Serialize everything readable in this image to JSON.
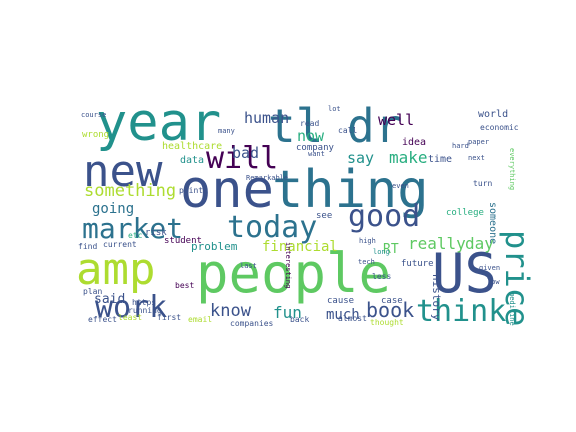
{
  "palette": {
    "dark_purple": "#440154",
    "indigo": "#3b528b",
    "blue": "#2c728e",
    "teal": "#21918c",
    "green": "#28ae80",
    "light_green": "#5ec962",
    "yellow_green": "#addc30",
    "yellow": "#fde725"
  },
  "words": [
    "year",
    "tl",
    "dr",
    "new",
    "one",
    "thing",
    "will",
    "market",
    "today",
    "good",
    "price",
    "amp",
    "people",
    "US",
    "work",
    "think",
    "know",
    "fun",
    "book",
    "much",
    "said",
    "going",
    "something",
    "human",
    "bad",
    "now",
    "say",
    "make",
    "well",
    "really",
    "day",
    "RT",
    "financial",
    "problem",
    "data",
    "healthcare",
    "history",
    "someone",
    "world",
    "time",
    "idea",
    "company",
    "see",
    "future",
    "college",
    "student",
    "risk",
    "current",
    "find",
    "https",
    "etc",
    "point",
    "best",
    "companies",
    "case",
    "cause",
    "back",
    "almost",
    "thought",
    "least",
    "first",
    "effect",
    "email",
    "wrong",
    "running",
    "course",
    "plan",
    "call",
    "read",
    "lot",
    "want",
    "many",
    "even",
    "long",
    "tech",
    "high",
    "less",
    "paper",
    "turn",
    "economic",
    "medicine",
    "given",
    "low",
    "everything",
    "interesting",
    "Remarkable",
    "last",
    "next",
    "hard"
  ]
}
